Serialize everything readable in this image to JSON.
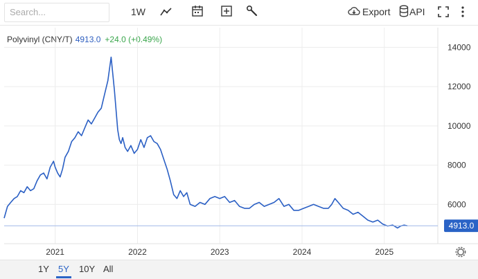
{
  "toolbar": {
    "search_placeholder": "Search...",
    "interval_label": "1W",
    "export_label": "Export",
    "api_label": "API",
    "icons": [
      "line-chart-icon",
      "calendar-icon",
      "add-box-icon",
      "wrench-icon",
      "cloud-download-icon",
      "database-icon",
      "fullscreen-icon",
      "more-vertical-icon"
    ]
  },
  "legend": {
    "name": "Polyvinyl (CNY/T)",
    "price": "4913.0",
    "change": "+24.0 (+0.49%)"
  },
  "colors": {
    "line": "#2a5fc4",
    "price_badge": "#2a63c6",
    "change_positive": "#3aa64c"
  },
  "ranges": [
    "1Y",
    "5Y",
    "10Y",
    "All"
  ],
  "active_range": "5Y",
  "chart_data": {
    "type": "line",
    "title": "Polyvinyl (CNY/T)",
    "current_value": "4913.0",
    "x_tick_labels": [
      "2021",
      "2022",
      "2023",
      "2024",
      "2025"
    ],
    "y_tick_labels": [
      "6000",
      "8000",
      "10000",
      "12000",
      "14000"
    ],
    "y_ticks": [
      6000,
      8000,
      10000,
      12000,
      14000
    ],
    "x_ticks": [
      2021,
      2022,
      2023,
      2024,
      2025
    ],
    "ylim": [
      4000,
      15000
    ],
    "xlim": [
      2020.38,
      2025.65
    ],
    "grid": true,
    "series": [
      {
        "x": [
          2020.38,
          2020.42,
          2020.46,
          2020.5,
          2020.54,
          2020.58,
          2020.62,
          2020.66,
          2020.7,
          2020.74,
          2020.78,
          2020.82,
          2020.86,
          2020.9,
          2020.94,
          2020.98,
          2021.0,
          2021.03,
          2021.06,
          2021.09,
          2021.12,
          2021.16,
          2021.2,
          2021.24,
          2021.28,
          2021.32,
          2021.36,
          2021.4,
          2021.44,
          2021.48,
          2021.52,
          2021.56,
          2021.6,
          2021.64,
          2021.68,
          2021.72,
          2021.76,
          2021.78,
          2021.8,
          2021.82,
          2021.85,
          2021.88,
          2021.92,
          2021.96,
          2022.0,
          2022.04,
          2022.08,
          2022.12,
          2022.16,
          2022.2,
          2022.24,
          2022.28,
          2022.32,
          2022.36,
          2022.4,
          2022.44,
          2022.48,
          2022.52,
          2022.56,
          2022.6,
          2022.64,
          2022.7,
          2022.76,
          2022.82,
          2022.88,
          2022.94,
          2023.0,
          2023.06,
          2023.12,
          2023.18,
          2023.24,
          2023.3,
          2023.36,
          2023.42,
          2023.48,
          2023.54,
          2023.6,
          2023.66,
          2023.72,
          2023.78,
          2023.84,
          2023.9,
          2023.96,
          2024.02,
          2024.08,
          2024.14,
          2024.2,
          2024.26,
          2024.32,
          2024.36,
          2024.4,
          2024.44,
          2024.5,
          2024.56,
          2024.62,
          2024.68,
          2024.74,
          2024.8,
          2024.86,
          2024.92,
          2024.98,
          2025.04,
          2025.1,
          2025.16,
          2025.2,
          2025.24,
          2025.28
        ],
        "y": [
          5300,
          5900,
          6100,
          6300,
          6400,
          6700,
          6600,
          6900,
          6700,
          6800,
          7200,
          7500,
          7600,
          7300,
          7900,
          8200,
          7900,
          7600,
          7400,
          7800,
          8400,
          8700,
          9200,
          9400,
          9700,
          9500,
          9900,
          10300,
          10100,
          10400,
          10700,
          10900,
          11600,
          12300,
          13500,
          11800,
          9800,
          9300,
          9100,
          9400,
          8900,
          8700,
          9000,
          8600,
          8800,
          9300,
          8900,
          9400,
          9500,
          9200,
          9100,
          8800,
          8300,
          7800,
          7200,
          6500,
          6300,
          6700,
          6400,
          6600,
          6000,
          5900,
          6100,
          6000,
          6300,
          6400,
          6300,
          6400,
          6100,
          6200,
          5900,
          5800,
          5800,
          6000,
          6100,
          5900,
          6000,
          6100,
          6300,
          5900,
          6000,
          5700,
          5700,
          5800,
          5900,
          6000,
          5900,
          5800,
          5800,
          6000,
          6300,
          6100,
          5800,
          5700,
          5500,
          5600,
          5400,
          5200,
          5100,
          5200,
          5000,
          4900,
          4950,
          4800,
          4900,
          4950,
          4913
        ]
      }
    ]
  }
}
